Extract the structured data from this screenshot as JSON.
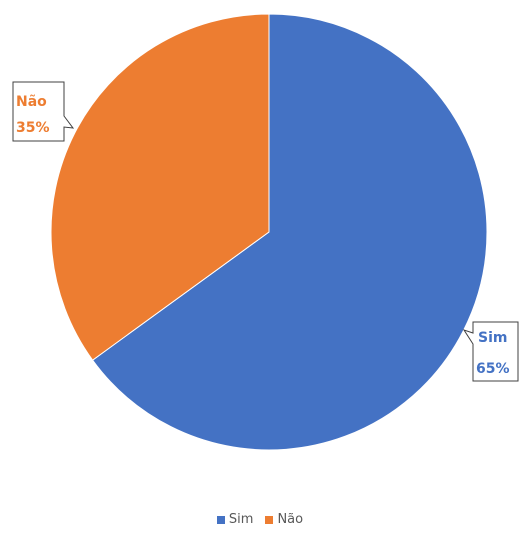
{
  "chart_data": {
    "type": "pie",
    "categories": [
      "Sim",
      "Não"
    ],
    "values": [
      65,
      35
    ],
    "labels": [
      "65%",
      "35%"
    ],
    "colors": [
      "#4472c4",
      "#ed7d31"
    ],
    "start_angle_deg": 0,
    "direction": "clockwise",
    "title": "",
    "legend_position": "bottom"
  }
}
